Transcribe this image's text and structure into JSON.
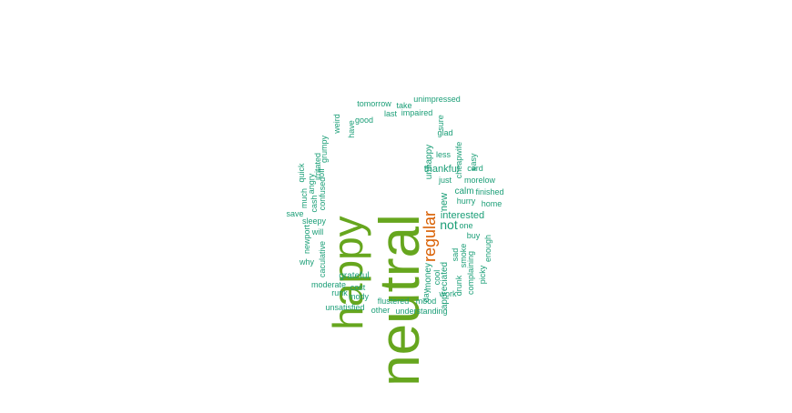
{
  "colors": {
    "background": "#ffffff",
    "large": "#66a61e",
    "medium": "#d95f02",
    "small": "#1b9e77"
  },
  "words": [
    {
      "text": "neutral",
      "tier": "large"
    },
    {
      "text": "happy",
      "tier": "large"
    },
    {
      "text": "regular",
      "tier": "medium"
    },
    {
      "text": "not",
      "tier": "small"
    },
    {
      "text": "interested",
      "tier": "small"
    },
    {
      "text": "thankful",
      "tier": "small"
    },
    {
      "text": "unhappy",
      "tier": "small"
    },
    {
      "text": "new",
      "tier": "small"
    },
    {
      "text": "calm",
      "tier": "small"
    },
    {
      "text": "appreciated",
      "tier": "small"
    },
    {
      "text": "money",
      "tier": "small"
    },
    {
      "text": "grateful",
      "tier": "small"
    },
    {
      "text": "unimpressed",
      "tier": "small"
    },
    {
      "text": "tomorrow",
      "tier": "small"
    },
    {
      "text": "take",
      "tier": "small"
    },
    {
      "text": "impaired",
      "tier": "small"
    },
    {
      "text": "last",
      "tier": "small"
    },
    {
      "text": "good",
      "tier": "small"
    },
    {
      "text": "have",
      "tier": "small"
    },
    {
      "text": "weird",
      "tier": "small"
    },
    {
      "text": "grumpy",
      "tier": "small"
    },
    {
      "text": "irritated",
      "tier": "small"
    },
    {
      "text": "sure",
      "tier": "small"
    },
    {
      "text": "glad",
      "tier": "small"
    },
    {
      "text": "cheapwife",
      "tier": "small"
    },
    {
      "text": "less",
      "tier": "small"
    },
    {
      "text": "easy",
      "tier": "small"
    },
    {
      "text": "card",
      "tier": "small"
    },
    {
      "text": "just",
      "tier": "small"
    },
    {
      "text": "morelow",
      "tier": "small"
    },
    {
      "text": "finished",
      "tier": "small"
    },
    {
      "text": "hurry",
      "tier": "small"
    },
    {
      "text": "home",
      "tier": "small"
    },
    {
      "text": "one",
      "tier": "small"
    },
    {
      "text": "buy",
      "tier": "small"
    },
    {
      "text": "enough",
      "tier": "small"
    },
    {
      "text": "sad",
      "tier": "small"
    },
    {
      "text": "smoke",
      "tier": "small"
    },
    {
      "text": "drunk",
      "tier": "small"
    },
    {
      "text": "complaining",
      "tier": "small"
    },
    {
      "text": "picky",
      "tier": "small"
    },
    {
      "text": "work",
      "tier": "small"
    },
    {
      "text": "cool",
      "tier": "small"
    },
    {
      "text": "day",
      "tier": "small"
    },
    {
      "text": "mood",
      "tier": "small"
    },
    {
      "text": "flustered",
      "tier": "small"
    },
    {
      "text": "understanding",
      "tier": "small"
    },
    {
      "text": "other",
      "tier": "small"
    },
    {
      "text": "unsatisfied",
      "tier": "small"
    },
    {
      "text": "mody",
      "tier": "small"
    },
    {
      "text": "runk",
      "tier": "small"
    },
    {
      "text": "cost",
      "tier": "small"
    },
    {
      "text": "moderate",
      "tier": "small"
    },
    {
      "text": "why",
      "tier": "small"
    },
    {
      "text": "caculative",
      "tier": "small"
    },
    {
      "text": "newport",
      "tier": "small"
    },
    {
      "text": "will",
      "tier": "small"
    },
    {
      "text": "sleepy",
      "tier": "small"
    },
    {
      "text": "save",
      "tier": "small"
    },
    {
      "text": "cash",
      "tier": "small"
    },
    {
      "text": "much",
      "tier": "small"
    },
    {
      "text": "quick",
      "tier": "small"
    },
    {
      "text": "angry",
      "tier": "small"
    },
    {
      "text": "confused",
      "tier": "small"
    },
    {
      "text": "off",
      "tier": "small"
    }
  ]
}
